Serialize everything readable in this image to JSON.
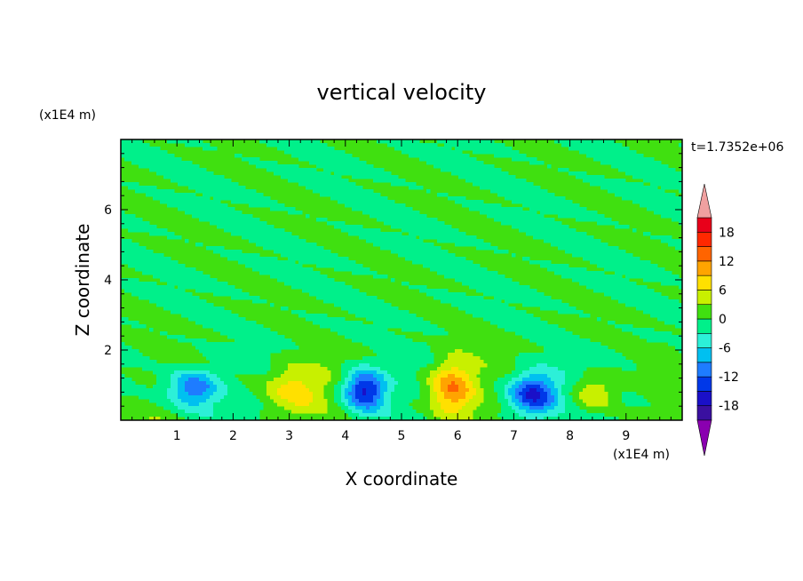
{
  "chart_data": {
    "type": "heatmap",
    "title": "vertical velocity",
    "xlabel": "X coordinate",
    "ylabel": "Z coordinate",
    "x_unit": "(x1E4 m)",
    "y_unit": "(x1E4 m)",
    "time_label": "t=1.7352e+06",
    "xlim": [
      0,
      10
    ],
    "ylim": [
      0,
      8
    ],
    "x_ticks": [
      "1",
      "2",
      "3",
      "4",
      "5",
      "6",
      "7",
      "8",
      "9"
    ],
    "y_ticks": [
      "2",
      "4",
      "6"
    ],
    "background_level": 0,
    "colorbar": {
      "levels": [
        -21,
        -18,
        -15,
        -12,
        -9,
        -6,
        -3,
        0,
        3,
        6,
        9,
        12,
        15,
        18,
        21
      ],
      "tick_labels": [
        "18",
        "12",
        "6",
        "0",
        "-6",
        "-12",
        "-18"
      ],
      "colors": [
        "#8a00b0",
        "#3a10a0",
        "#1a10c8",
        "#0038e8",
        "#1e7cff",
        "#00c0f0",
        "#2cf0d8",
        "#00f08a",
        "#40e010",
        "#c8f000",
        "#ffe000",
        "#ffa400",
        "#ff6400",
        "#ff2800",
        "#e8001a",
        "#f0a0a0"
      ],
      "extend": "both"
    },
    "features": [
      {
        "x": 1.3,
        "z": 0.9,
        "peak": -12,
        "sx": 0.45,
        "sz": 0.55
      },
      {
        "x": 3.1,
        "z": 0.9,
        "peak": 8,
        "sx": 0.55,
        "sz": 0.7
      },
      {
        "x": 4.35,
        "z": 0.85,
        "peak": -17,
        "sx": 0.38,
        "sz": 0.6
      },
      {
        "x": 5.9,
        "z": 0.9,
        "peak": 13,
        "sx": 0.42,
        "sz": 0.8
      },
      {
        "x": 7.35,
        "z": 0.75,
        "peak": -17,
        "sx": 0.45,
        "sz": 0.6
      },
      {
        "x": 8.45,
        "z": 0.8,
        "peak": 7,
        "sx": 0.42,
        "sz": 0.55
      }
    ]
  }
}
